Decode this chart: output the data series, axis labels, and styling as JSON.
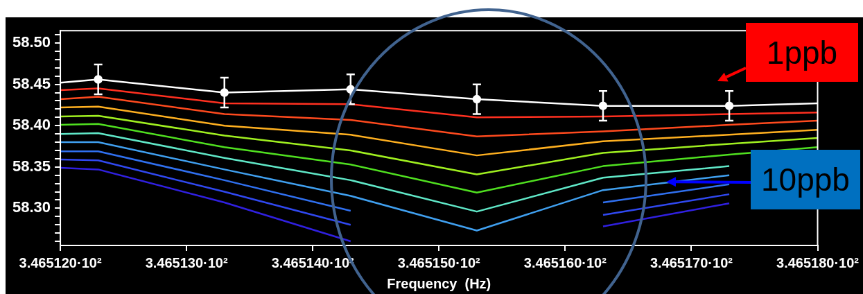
{
  "chart_data": {
    "type": "line",
    "xlabel": "Frequency  (Hz)",
    "x": [
      346.512,
      346.5123,
      346.5133,
      346.5143,
      346.5153,
      346.5163,
      346.5173,
      346.518
    ],
    "xlim": [
      346.512,
      346.518
    ],
    "xticks": [
      {
        "value": 346.512,
        "label": "3.465120·10²"
      },
      {
        "value": 346.513,
        "label": "3.465130·10²"
      },
      {
        "value": 346.514,
        "label": "3.465140·10²"
      },
      {
        "value": 346.515,
        "label": "3.465150·10²"
      },
      {
        "value": 346.516,
        "label": "3.465160·10²"
      },
      {
        "value": 346.517,
        "label": "3.465170·10²"
      },
      {
        "value": 346.518,
        "label": "3.465180·10²"
      }
    ],
    "ylim": [
      58.255,
      58.515
    ],
    "yticks": [
      {
        "value": 58.26,
        "label": null
      },
      {
        "value": 58.27,
        "label": null
      },
      {
        "value": 58.28,
        "label": null
      },
      {
        "value": 58.29,
        "label": null
      },
      {
        "value": 58.3,
        "label": "58.30"
      },
      {
        "value": 58.31,
        "label": null
      },
      {
        "value": 58.32,
        "label": null
      },
      {
        "value": 58.33,
        "label": null
      },
      {
        "value": 58.34,
        "label": null
      },
      {
        "value": 58.35,
        "label": "58.35"
      },
      {
        "value": 58.36,
        "label": null
      },
      {
        "value": 58.37,
        "label": null
      },
      {
        "value": 58.38,
        "label": null
      },
      {
        "value": 58.39,
        "label": null
      },
      {
        "value": 58.4,
        "label": "58.40"
      },
      {
        "value": 58.41,
        "label": null
      },
      {
        "value": 58.42,
        "label": null
      },
      {
        "value": 58.43,
        "label": null
      },
      {
        "value": 58.44,
        "label": null
      },
      {
        "value": 58.45,
        "label": "58.45"
      },
      {
        "value": 58.46,
        "label": null
      },
      {
        "value": 58.47,
        "label": null
      },
      {
        "value": 58.48,
        "label": null
      },
      {
        "value": 58.49,
        "label": null
      },
      {
        "value": 58.5,
        "label": "58.50"
      },
      {
        "value": 58.51,
        "label": null
      }
    ],
    "line_style": "solid",
    "series": [
      {
        "color": "#ffffff",
        "marker": "circle",
        "values": [
          58.452,
          58.456,
          58.44,
          58.444,
          58.432,
          58.424,
          58.424,
          58.427
        ],
        "errors": [
          null,
          0.018,
          0.018,
          0.018,
          0.018,
          0.018,
          0.018,
          null
        ]
      },
      {
        "color": "#ff3020",
        "values": [
          58.443,
          58.445,
          58.427,
          58.426,
          58.41,
          58.411,
          58.414,
          58.416
        ]
      },
      {
        "color": "#ff4a1e",
        "values": [
          58.432,
          58.435,
          58.414,
          58.407,
          58.387,
          58.393,
          58.401,
          58.406
        ]
      },
      {
        "color": "#ffb020",
        "values": [
          58.422,
          58.423,
          58.4,
          58.389,
          58.364,
          58.381,
          58.389,
          58.395
        ]
      },
      {
        "color": "#a0f020",
        "values": [
          58.411,
          58.412,
          58.388,
          58.37,
          58.341,
          58.367,
          58.378,
          58.385
        ]
      },
      {
        "color": "#50e020",
        "values": [
          58.401,
          58.402,
          58.374,
          58.353,
          58.319,
          58.351,
          58.365,
          58.374
        ]
      },
      {
        "color": "#60e8c8",
        "values": [
          58.39,
          58.391,
          58.361,
          58.334,
          58.296,
          58.337,
          58.351,
          null
        ]
      },
      {
        "color": "#40a0f0",
        "values": [
          58.38,
          58.38,
          58.347,
          58.315,
          58.273,
          58.322,
          58.34,
          null
        ]
      },
      {
        "color": "#3070f0",
        "values": [
          58.369,
          58.369,
          58.334,
          58.297,
          null,
          58.307,
          58.329,
          null
        ]
      },
      {
        "color": "#3048f0",
        "values": [
          58.359,
          58.358,
          58.32,
          58.28,
          null,
          58.292,
          58.317,
          null
        ]
      },
      {
        "color": "#3020e0",
        "values": [
          58.349,
          58.347,
          58.307,
          58.26,
          null,
          58.278,
          58.306,
          null
        ]
      }
    ],
    "annotations": [
      "1ppb",
      {
        "text": "10ppb",
        "x": 346.5168,
        "y": 58.332
      }
    ]
  }
}
